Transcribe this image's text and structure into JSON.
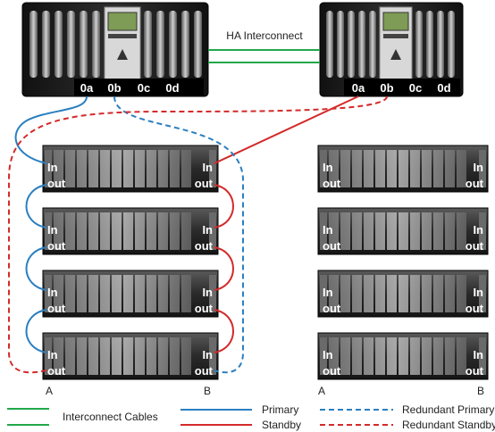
{
  "controllers": [
    {
      "ports": [
        "0a",
        "0b",
        "0c",
        "0d"
      ]
    },
    {
      "ports": [
        "0a",
        "0b",
        "0c",
        "0d"
      ]
    }
  ],
  "interconnect_label": "HA Interconnect",
  "shelf_port_labels": {
    "in": "In",
    "out": "out"
  },
  "stack_labels": {
    "left": {
      "a": "A",
      "b": "B"
    },
    "right": {
      "a": "A",
      "b": "B"
    }
  },
  "legend": {
    "interconnect": "Interconnect Cables",
    "primary": "Primary",
    "standby": "Standby",
    "redundant_primary": "Redundant Primary",
    "redundant_standby": "Redundant Standby"
  },
  "colors": {
    "interconnect": "#22a84a",
    "primary": "#2a7fc0",
    "standby": "#d42a2a",
    "chassis": "#1a1a1a",
    "port_bar": "#000000",
    "shelf": "#2a2a2a",
    "text_light": "#ffffff"
  }
}
